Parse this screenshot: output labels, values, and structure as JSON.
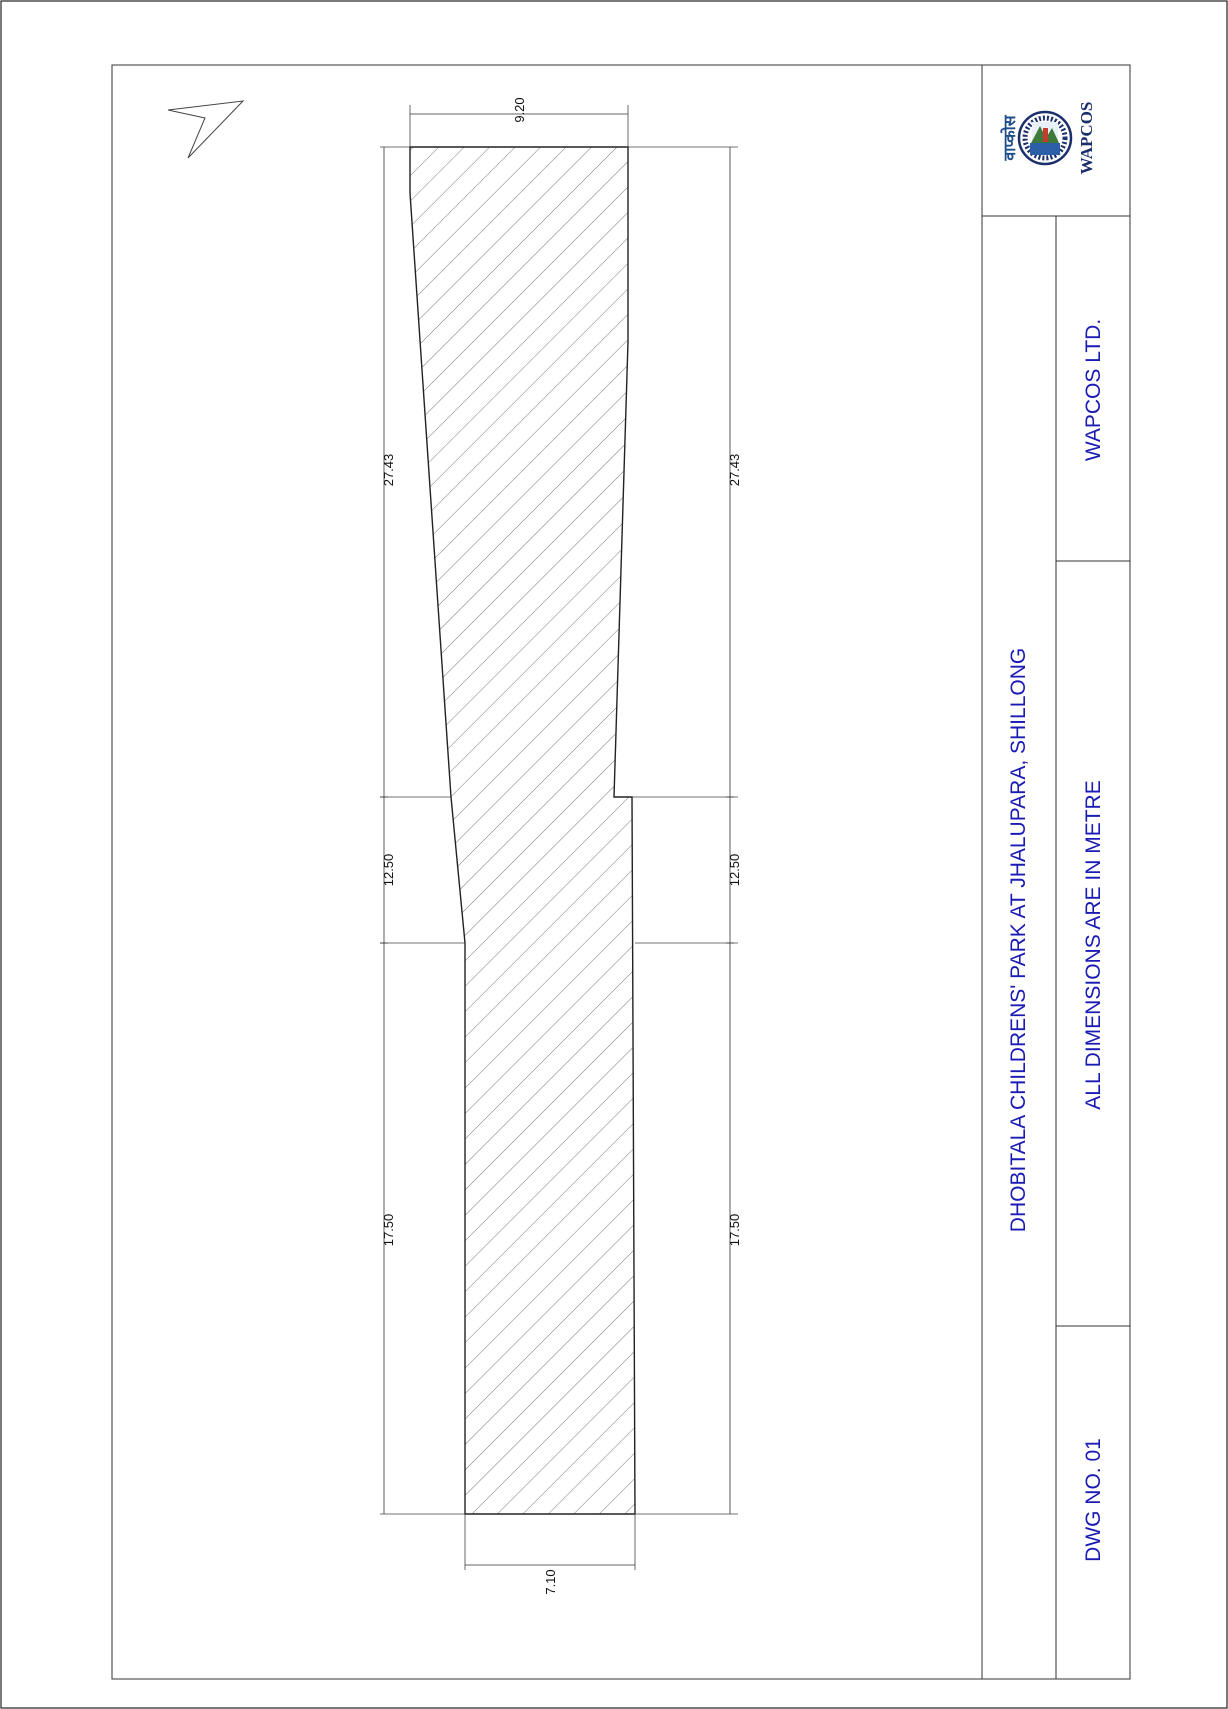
{
  "drawing": {
    "title": "DHOBITALA CHILDRENS' PARK AT JHALUPARA, SHILLONG",
    "note": "ALL DIMENSIONS ARE IN METRE",
    "company": "WAPCOS LTD.",
    "drawing_number": "DWG NO. 01"
  },
  "logo": {
    "hindi_text": "वाप्कोस",
    "english_text": "WAPCOS"
  },
  "dimensions": {
    "top_width": "9.20",
    "bottom_width": "7.10",
    "left_segments": [
      "27.43",
      "12.50",
      "17.50"
    ],
    "right_segments": [
      "27.43",
      "12.50",
      "17.50"
    ]
  },
  "colors": {
    "title_block_text": "#1a1ab4",
    "line": "#222222"
  },
  "icons": {
    "north_arrow": "north-arrow-icon"
  }
}
